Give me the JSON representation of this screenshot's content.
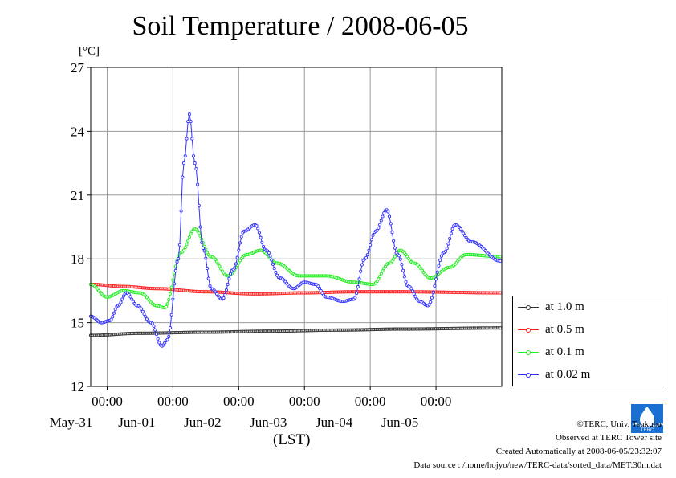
{
  "title": "Soil Temperature / 2008-06-05",
  "unit_label": "[°C]",
  "colors": {
    "depth_1_0m": "#333333",
    "depth_0_5m": "#ff2020",
    "depth_0_1m": "#22ee22",
    "depth_0_02m": "#3333ff"
  },
  "legend": [
    "at 1.0 m",
    "at 0.5 m",
    "at 0.1 m",
    "at 0.02 m"
  ],
  "credits": {
    "copyright": "©TERC, Univ. Tsukuba",
    "site": "Observed at TERC Tower site",
    "created": "Created Automatically at 2008-06-05/23:32:07",
    "source": "Data source : /home/hojyo/new/TERC-data/sorted_data/MET.30m.dat"
  },
  "logo_text": "TERC",
  "chart_data": {
    "type": "line",
    "title": "Soil Temperature / 2008-06-05",
    "xlabel": "(LST)",
    "ylabel": "[°C]",
    "xlim": [
      "2008-05-30 18:00",
      "2008-06-05 24:00"
    ],
    "ylim": [
      12,
      27
    ],
    "yticks": [
      12,
      15,
      18,
      21,
      24,
      27
    ],
    "xticks": [
      {
        "time": "00:00",
        "date": "May-31"
      },
      {
        "time": "00:00",
        "date": "Jun-01"
      },
      {
        "time": "00:00",
        "date": "Jun-02"
      },
      {
        "time": "00:00",
        "date": "Jun-03"
      },
      {
        "time": "00:00",
        "date": "Jun-04"
      },
      {
        "time": "00:00",
        "date": "Jun-05"
      }
    ],
    "grid": true,
    "legend_position": "right",
    "series": [
      {
        "name": "at 1.0 m",
        "points": [
          [
            "2008-05-30 18:00",
            14.4
          ],
          [
            "2008-05-31 12:00",
            14.5
          ],
          [
            "2008-06-01 12:00",
            14.55
          ],
          [
            "2008-06-02 12:00",
            14.6
          ],
          [
            "2008-06-03 12:00",
            14.65
          ],
          [
            "2008-06-04 12:00",
            14.7
          ],
          [
            "2008-06-05 23:30",
            14.75
          ]
        ]
      },
      {
        "name": "at 0.5 m",
        "points": [
          [
            "2008-05-30 18:00",
            16.8
          ],
          [
            "2008-05-31 06:00",
            16.7
          ],
          [
            "2008-05-31 18:00",
            16.6
          ],
          [
            "2008-06-01 12:00",
            16.45
          ],
          [
            "2008-06-02 06:00",
            16.35
          ],
          [
            "2008-06-03 00:00",
            16.4
          ],
          [
            "2008-06-03 18:00",
            16.45
          ],
          [
            "2008-06-04 12:00",
            16.45
          ],
          [
            "2008-06-05 23:30",
            16.4
          ]
        ]
      },
      {
        "name": "at 0.1 m",
        "points": [
          [
            "2008-05-30 18:00",
            16.8
          ],
          [
            "2008-05-31 00:00",
            16.2
          ],
          [
            "2008-05-31 06:00",
            16.5
          ],
          [
            "2008-05-31 12:00",
            16.4
          ],
          [
            "2008-05-31 18:00",
            15.8
          ],
          [
            "2008-05-31 21:00",
            15.7
          ],
          [
            "2008-06-01 03:00",
            18.3
          ],
          [
            "2008-06-01 08:00",
            19.4
          ],
          [
            "2008-06-01 14:00",
            18.1
          ],
          [
            "2008-06-01 20:00",
            17.2
          ],
          [
            "2008-06-02 03:00",
            18.2
          ],
          [
            "2008-06-02 08:00",
            18.4
          ],
          [
            "2008-06-02 14:00",
            17.8
          ],
          [
            "2008-06-02 22:00",
            17.2
          ],
          [
            "2008-06-03 08:00",
            17.2
          ],
          [
            "2008-06-03 18:00",
            16.9
          ],
          [
            "2008-06-04 01:00",
            16.8
          ],
          [
            "2008-06-04 07:00",
            17.8
          ],
          [
            "2008-06-04 11:00",
            18.4
          ],
          [
            "2008-06-04 16:00",
            17.8
          ],
          [
            "2008-06-04 22:00",
            17.1
          ],
          [
            "2008-06-05 05:00",
            17.6
          ],
          [
            "2008-06-05 11:00",
            18.2
          ],
          [
            "2008-06-05 23:30",
            18.1
          ]
        ]
      },
      {
        "name": "at 0.02 m",
        "points": [
          [
            "2008-05-30 18:00",
            15.3
          ],
          [
            "2008-05-30 22:00",
            15.0
          ],
          [
            "2008-05-31 01:00",
            15.1
          ],
          [
            "2008-05-31 04:00",
            15.8
          ],
          [
            "2008-05-31 07:00",
            16.4
          ],
          [
            "2008-05-31 11:00",
            15.8
          ],
          [
            "2008-05-31 16:00",
            15.0
          ],
          [
            "2008-05-31 20:00",
            13.9
          ],
          [
            "2008-05-31 22:00",
            14.2
          ],
          [
            "2008-06-01 02:00",
            18.0
          ],
          [
            "2008-06-01 04:00",
            22.5
          ],
          [
            "2008-06-01 06:00",
            24.8
          ],
          [
            "2008-06-01 08:00",
            22.5
          ],
          [
            "2008-06-01 11:00",
            18.5
          ],
          [
            "2008-06-01 14:00",
            16.6
          ],
          [
            "2008-06-01 18:00",
            16.1
          ],
          [
            "2008-06-01 22:00",
            17.5
          ],
          [
            "2008-06-02 02:00",
            19.3
          ],
          [
            "2008-06-02 06:00",
            19.6
          ],
          [
            "2008-06-02 10:00",
            18.4
          ],
          [
            "2008-06-02 15:00",
            17.1
          ],
          [
            "2008-06-02 20:00",
            16.6
          ],
          [
            "2008-06-03 00:00",
            16.9
          ],
          [
            "2008-06-03 04:00",
            16.8
          ],
          [
            "2008-06-03 08:00",
            16.2
          ],
          [
            "2008-06-03 14:00",
            16.0
          ],
          [
            "2008-06-03 18:00",
            16.1
          ],
          [
            "2008-06-03 22:00",
            18.0
          ],
          [
            "2008-06-04 02:00",
            19.3
          ],
          [
            "2008-06-04 06:00",
            20.3
          ],
          [
            "2008-06-04 10:00",
            18.2
          ],
          [
            "2008-06-04 14:00",
            16.7
          ],
          [
            "2008-06-04 18:00",
            16.0
          ],
          [
            "2008-06-04 21:00",
            15.8
          ],
          [
            "2008-06-05 03:00",
            18.3
          ],
          [
            "2008-06-05 07:00",
            19.6
          ],
          [
            "2008-06-05 13:00",
            18.8
          ],
          [
            "2008-06-05 23:30",
            17.9
          ]
        ]
      }
    ]
  }
}
